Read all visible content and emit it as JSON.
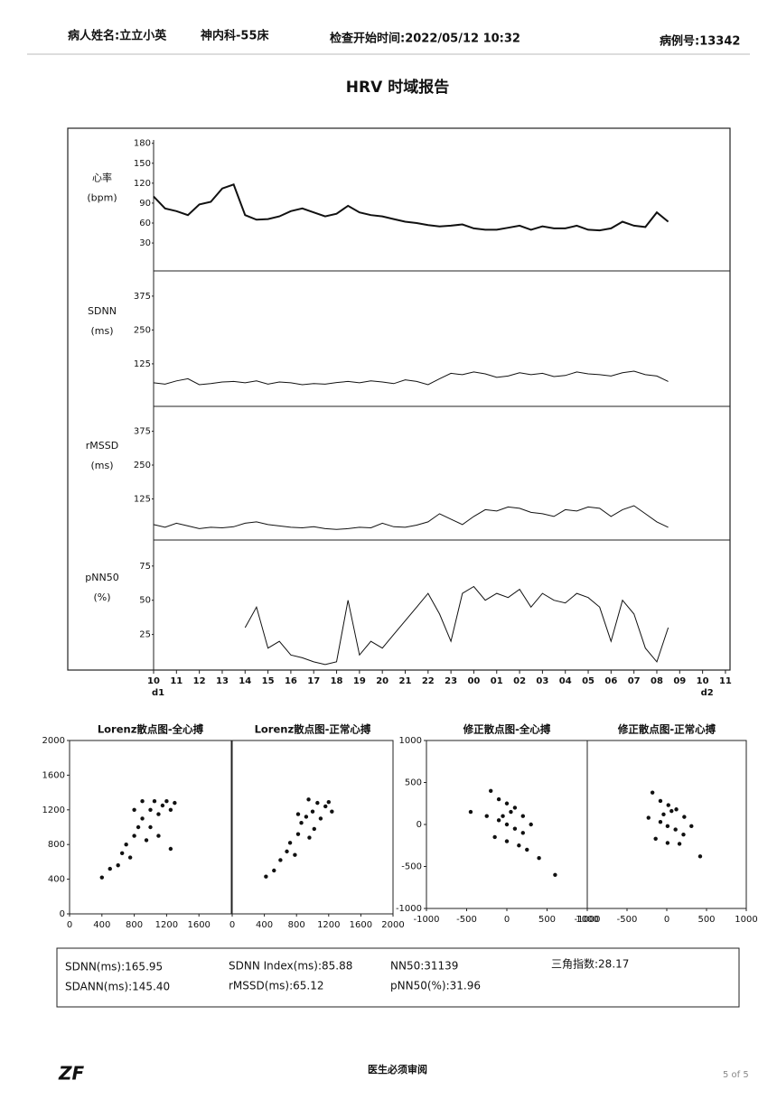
{
  "header": {
    "patient": "病人姓名:立立小英",
    "ward": "神内科-55床",
    "start_time": "检查开始时间:2022/05/12 10:32",
    "case_no": "病例号:13342"
  },
  "title": "HRV 时域报告",
  "trend": {
    "xlim": [
      0,
      25.2
    ],
    "xticks": [
      {
        "value": 0,
        "label": "10"
      },
      {
        "value": 1,
        "label": "11"
      },
      {
        "value": 2,
        "label": "12"
      },
      {
        "value": 3,
        "label": "13"
      },
      {
        "value": 4,
        "label": "14"
      },
      {
        "value": 5,
        "label": "15"
      },
      {
        "value": 6,
        "label": "16"
      },
      {
        "value": 7,
        "label": "17"
      },
      {
        "value": 8,
        "label": "18"
      },
      {
        "value": 9,
        "label": "19"
      },
      {
        "value": 10,
        "label": "20"
      },
      {
        "value": 11,
        "label": "21"
      },
      {
        "value": 12,
        "label": "22"
      },
      {
        "value": 13,
        "label": "23"
      },
      {
        "value": 14,
        "label": "00"
      },
      {
        "value": 15,
        "label": "01"
      },
      {
        "value": 16,
        "label": "02"
      },
      {
        "value": 17,
        "label": "03"
      },
      {
        "value": 18,
        "label": "04"
      },
      {
        "value": 19,
        "label": "05"
      },
      {
        "value": 20,
        "label": "06"
      },
      {
        "value": 21,
        "label": "07"
      },
      {
        "value": 22,
        "label": "08"
      },
      {
        "value": 23,
        "label": "09"
      },
      {
        "value": 24,
        "label": "10"
      },
      {
        "value": 25,
        "label": "11"
      }
    ],
    "day_labels": [
      {
        "value": 0,
        "label": "d1"
      },
      {
        "value": 24,
        "label": "d2"
      }
    ],
    "x": [
      0,
      0.5,
      1,
      1.5,
      2,
      2.5,
      3,
      3.5,
      4,
      4.5,
      5,
      5.5,
      6,
      6.5,
      7,
      7.5,
      8,
      8.5,
      9,
      9.5,
      10,
      10.5,
      11,
      11.5,
      12,
      12.5,
      13,
      13.5,
      14,
      14.5,
      15,
      15.5,
      16,
      16.5,
      17,
      17.5,
      18,
      18.5,
      19,
      19.5,
      20,
      20.5,
      21,
      21.5,
      22,
      22.5
    ],
    "panels": [
      {
        "label": [
          "心率",
          "(bpm)"
        ],
        "ylim": [
          -12,
          185
        ],
        "yticks": [
          30,
          60,
          90,
          120,
          150,
          180
        ],
        "values": [
          100,
          82,
          78,
          72,
          88,
          92,
          112,
          118,
          72,
          65,
          66,
          70,
          78,
          82,
          76,
          70,
          74,
          86,
          76,
          72,
          70,
          66,
          62,
          60,
          57,
          55,
          56,
          58,
          52,
          50,
          50,
          53,
          56,
          50,
          55,
          52,
          52,
          56,
          50,
          49,
          52,
          62,
          56,
          54,
          76,
          62
        ]
      },
      {
        "label": [
          "SDNN",
          "(ms)"
        ],
        "ylim": [
          -32,
          468
        ],
        "yticks": [
          125,
          250,
          375
        ],
        "values": [
          55,
          50,
          62,
          70,
          48,
          52,
          58,
          60,
          55,
          62,
          50,
          58,
          55,
          48,
          52,
          50,
          56,
          60,
          55,
          62,
          58,
          52,
          66,
          60,
          48,
          70,
          90,
          85,
          95,
          88,
          75,
          80,
          92,
          85,
          90,
          78,
          82,
          95,
          88,
          85,
          80,
          92,
          98,
          85,
          80,
          60
        ]
      },
      {
        "label": [
          "rMSSD",
          "(ms)"
        ],
        "ylim": [
          -27,
          467
        ],
        "yticks": [
          125,
          250,
          375
        ],
        "values": [
          30,
          20,
          35,
          25,
          15,
          20,
          18,
          22,
          35,
          40,
          30,
          25,
          20,
          18,
          22,
          15,
          12,
          15,
          20,
          18,
          35,
          22,
          20,
          28,
          40,
          70,
          50,
          30,
          60,
          85,
          80,
          95,
          90,
          75,
          70,
          60,
          85,
          80,
          95,
          90,
          60,
          85,
          100,
          70,
          40,
          20
        ]
      },
      {
        "label": [
          "pNN50",
          "(%)"
        ],
        "ylim": [
          -1,
          94
        ],
        "yticks": [
          25,
          50,
          75
        ],
        "values": [
          null,
          null,
          null,
          null,
          null,
          null,
          null,
          null,
          30,
          45,
          15,
          20,
          10,
          8,
          5,
          3,
          5,
          50,
          10,
          20,
          15,
          25,
          35,
          45,
          55,
          40,
          20,
          55,
          60,
          50,
          55,
          52,
          58,
          45,
          55,
          50,
          48,
          55,
          52,
          45,
          20,
          50,
          40,
          15,
          5,
          30
        ]
      }
    ]
  },
  "scatter": [
    {
      "title": "Lorenz散点图-全心搏",
      "xlim": [
        0,
        2000
      ],
      "ylim": [
        0,
        2000
      ],
      "xticks": [
        0,
        400,
        800,
        1200,
        1600
      ],
      "yticks": [
        0,
        400,
        800,
        1200,
        1600,
        2000
      ],
      "points": [
        [
          400,
          420
        ],
        [
          500,
          520
        ],
        [
          600,
          560
        ],
        [
          650,
          700
        ],
        [
          700,
          800
        ],
        [
          750,
          650
        ],
        [
          800,
          900
        ],
        [
          850,
          1000
        ],
        [
          900,
          1100
        ],
        [
          950,
          850
        ],
        [
          1000,
          1200
        ],
        [
          1050,
          1300
        ],
        [
          1100,
          1150
        ],
        [
          1150,
          1250
        ],
        [
          1200,
          1300
        ],
        [
          1250,
          1200
        ],
        [
          1300,
          1280
        ],
        [
          900,
          1300
        ],
        [
          800,
          1200
        ],
        [
          1000,
          1000
        ],
        [
          1100,
          900
        ],
        [
          1250,
          750
        ]
      ]
    },
    {
      "title": "Lorenz散点图-正常心搏",
      "xlim": [
        0,
        2000
      ],
      "ylim": [
        0,
        2000
      ],
      "xticks": [
        0,
        400,
        800,
        1200,
        1600,
        2000
      ],
      "points": [
        [
          420,
          430
        ],
        [
          520,
          500
        ],
        [
          600,
          620
        ],
        [
          680,
          720
        ],
        [
          720,
          820
        ],
        [
          780,
          680
        ],
        [
          820,
          920
        ],
        [
          860,
          1050
        ],
        [
          920,
          1120
        ],
        [
          960,
          880
        ],
        [
          1000,
          1180
        ],
        [
          1060,
          1280
        ],
        [
          1100,
          1100
        ],
        [
          1160,
          1240
        ],
        [
          1200,
          1290
        ],
        [
          1240,
          1180
        ],
        [
          950,
          1320
        ],
        [
          820,
          1150
        ],
        [
          1020,
          980
        ]
      ]
    },
    {
      "title": "修正散点图-全心搏",
      "xlim": [
        -1000,
        1000
      ],
      "ylim": [
        -1000,
        1000
      ],
      "xticks": [
        -1000,
        -500,
        0,
        500,
        1000
      ],
      "yticks": [
        -1000,
        -500,
        0,
        500,
        1000
      ],
      "points": [
        [
          -200,
          400
        ],
        [
          -100,
          300
        ],
        [
          0,
          250
        ],
        [
          100,
          200
        ],
        [
          -250,
          100
        ],
        [
          -100,
          50
        ],
        [
          0,
          0
        ],
        [
          100,
          -50
        ],
        [
          200,
          -100
        ],
        [
          300,
          0
        ],
        [
          -150,
          -150
        ],
        [
          0,
          -200
        ],
        [
          150,
          -250
        ],
        [
          250,
          -300
        ],
        [
          -50,
          100
        ],
        [
          50,
          150
        ],
        [
          200,
          100
        ],
        [
          400,
          -400
        ],
        [
          -450,
          150
        ],
        [
          600,
          -600
        ]
      ]
    },
    {
      "title": "修正散点图-正常心搏",
      "xlim": [
        -1000,
        1000
      ],
      "ylim": [
        -1000,
        1000
      ],
      "xticks": [
        -1000,
        -500,
        0,
        500,
        1000
      ],
      "points": [
        [
          -180,
          380
        ],
        [
          -80,
          280
        ],
        [
          20,
          230
        ],
        [
          120,
          180
        ],
        [
          -230,
          80
        ],
        [
          -80,
          30
        ],
        [
          10,
          -20
        ],
        [
          110,
          -60
        ],
        [
          210,
          -120
        ],
        [
          310,
          -20
        ],
        [
          -140,
          -170
        ],
        [
          10,
          -220
        ],
        [
          160,
          -230
        ],
        [
          -40,
          120
        ],
        [
          60,
          160
        ],
        [
          220,
          90
        ],
        [
          420,
          -380
        ]
      ]
    }
  ],
  "stats": [
    "SDNN(ms):165.95",
    "SDANN(ms):145.40",
    "SDNN Index(ms):85.88",
    "rMSSD(ms):65.12",
    "NN50:31139",
    "pNN50(%):31.96",
    "三角指数:28.17"
  ],
  "footer": {
    "note": "医生必须审阅",
    "page": "5 of 5"
  }
}
